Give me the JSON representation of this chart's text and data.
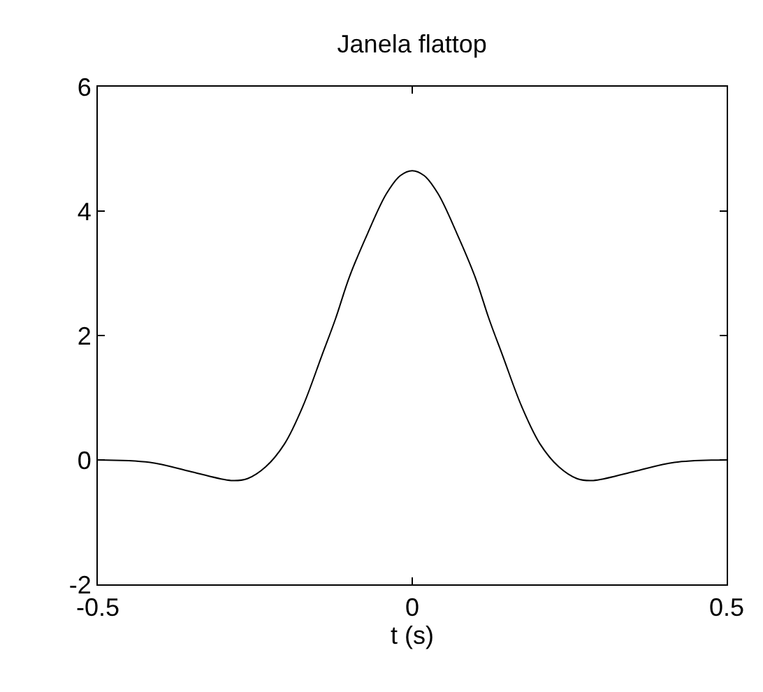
{
  "chart_data": {
    "type": "line",
    "title": "Janela flattop",
    "xlabel": "t (s)",
    "x": [
      -0.5,
      -0.417,
      -0.351,
      -0.288,
      -0.262,
      -0.233,
      -0.203,
      -0.174,
      -0.144,
      -0.122,
      -0.1,
      -0.071,
      -0.041,
      -0.019,
      0,
      0.019,
      0.041,
      0.071,
      0.1,
      0.122,
      0.144,
      0.174,
      0.203,
      0.233,
      0.262,
      0.288,
      0.351,
      0.417,
      0.5
    ],
    "series": [
      {
        "color": "#000000",
        "values": [
          0,
          -0.04,
          -0.19,
          -0.33,
          -0.3,
          -0.11,
          0.26,
          0.86,
          1.67,
          2.27,
          2.94,
          3.64,
          4.28,
          4.57,
          4.65,
          4.57,
          4.28,
          3.64,
          2.94,
          2.27,
          1.67,
          0.86,
          0.26,
          -0.11,
          -0.3,
          -0.33,
          -0.19,
          -0.04,
          0
        ]
      }
    ],
    "xlim": [
      -0.5,
      0.5
    ],
    "xticks": [
      -0.5,
      0,
      0.5
    ],
    "ylim": [
      -2,
      6
    ],
    "yticks": [
      -2,
      0,
      2,
      4,
      6
    ],
    "legend": false,
    "marker": "none",
    "line_style": "solid"
  }
}
